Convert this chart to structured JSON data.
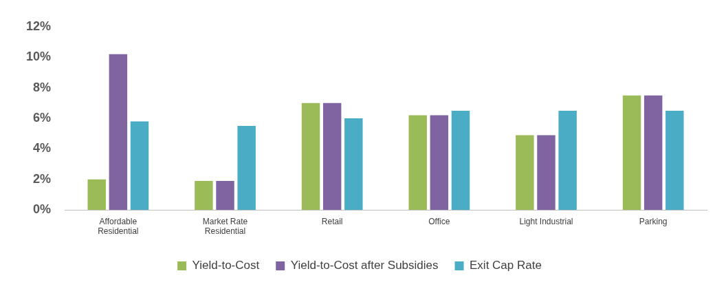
{
  "chart_data": {
    "type": "bar",
    "categories": [
      "Affordable Residential",
      "Market Rate Residential",
      "Retail",
      "Office",
      "Light Industrial",
      "Parking"
    ],
    "series": [
      {
        "name": "Yield-to-Cost",
        "color": "#9bbb59",
        "values": [
          2.0,
          1.9,
          7.0,
          6.2,
          4.9,
          7.5
        ]
      },
      {
        "name": "Yield-to-Cost after Subsidies",
        "color": "#8064a2",
        "values": [
          10.2,
          1.9,
          7.0,
          6.2,
          4.9,
          7.5
        ]
      },
      {
        "name": "Exit Cap Rate",
        "color": "#4bacc6",
        "values": [
          5.8,
          5.5,
          6.0,
          6.5,
          6.5,
          6.5
        ]
      }
    ],
    "ylim": [
      0,
      12
    ],
    "yticks": [
      {
        "value": 0,
        "label": "0%"
      },
      {
        "value": 2,
        "label": "2%"
      },
      {
        "value": 4,
        "label": "4%"
      },
      {
        "value": 6,
        "label": "6%"
      },
      {
        "value": 8,
        "label": "8%"
      },
      {
        "value": 10,
        "label": "10%"
      },
      {
        "value": 12,
        "label": "12%"
      }
    ],
    "grid": false,
    "legend": "bottom"
  }
}
